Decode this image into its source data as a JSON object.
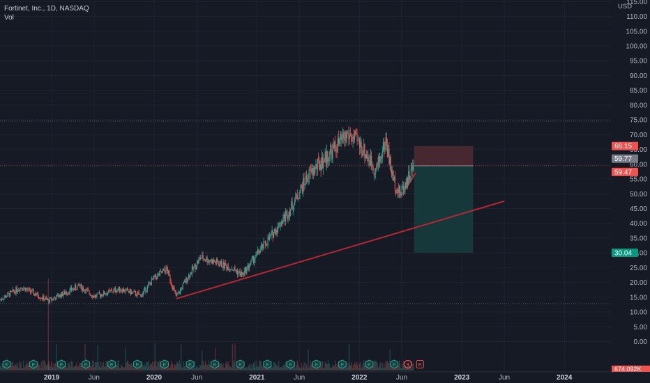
{
  "legend": {
    "symbol_line": "Fortinet, Inc., 1D, NASDAQ",
    "indicator": "Vol"
  },
  "colors": {
    "background": "#161a25",
    "up_candle": "#26a69a",
    "down_candle": "#ef5350",
    "trendline": "#b22833",
    "stop_zone": "#4a2830",
    "target_zone": "#163a3c",
    "last_price_badge": "#787b86",
    "entry_badge": "#ef5350",
    "target_badge": "#089981",
    "grid": "#1f2330"
  },
  "chart_data": {
    "type": "candlestick",
    "currency_label": "USD",
    "y_ticks": [
      "0.00",
      "5.00",
      "10.00",
      "15.00",
      "20.00",
      "25.00",
      "30.00",
      "35.00",
      "40.00",
      "45.00",
      "50.00",
      "55.00",
      "60.00",
      "65.00",
      "70.00",
      "75.00",
      "80.00",
      "85.00",
      "90.00",
      "95.00",
      "100.00",
      "105.00",
      "110.00",
      "115.00"
    ],
    "ylim": [
      -5,
      118
    ],
    "x_ticks": [
      "2019",
      "Jun",
      "2020",
      "Jun",
      "2021",
      "Jun",
      "2022",
      "Jun",
      "2023",
      "Jun",
      "2024"
    ],
    "x_tick_dates": [
      "2019-01-01",
      "2019-06-01",
      "2020-01-01",
      "2020-06-01",
      "2021-01-01",
      "2021-06-01",
      "2022-01-01",
      "2022-06-01",
      "2023-01-01",
      "2023-06-01",
      "2024-01-01"
    ],
    "xlim": [
      "2018-07-01",
      "2024-06-15"
    ],
    "price_path": [
      {
        "date": "2018-07-01",
        "price": 14.2
      },
      {
        "date": "2018-09-15",
        "price": 18.5
      },
      {
        "date": "2018-12-20",
        "price": 13.8
      },
      {
        "date": "2019-04-10",
        "price": 18.8
      },
      {
        "date": "2019-06-01",
        "price": 15.3
      },
      {
        "date": "2019-09-01",
        "price": 17.8
      },
      {
        "date": "2019-11-15",
        "price": 15.6
      },
      {
        "date": "2020-01-01",
        "price": 21.5
      },
      {
        "date": "2020-02-15",
        "price": 24.5
      },
      {
        "date": "2020-03-20",
        "price": 15.0
      },
      {
        "date": "2020-05-01",
        "price": 22.0
      },
      {
        "date": "2020-06-15",
        "price": 28.5
      },
      {
        "date": "2020-08-01",
        "price": 27.0
      },
      {
        "date": "2020-10-01",
        "price": 25.0
      },
      {
        "date": "2020-11-10",
        "price": 22.5
      },
      {
        "date": "2021-01-01",
        "price": 29.5
      },
      {
        "date": "2021-02-15",
        "price": 35.0
      },
      {
        "date": "2021-05-01",
        "price": 45.0
      },
      {
        "date": "2021-07-01",
        "price": 56.0
      },
      {
        "date": "2021-09-01",
        "price": 62.0
      },
      {
        "date": "2021-11-20",
        "price": 70.0
      },
      {
        "date": "2022-01-01",
        "price": 67.0
      },
      {
        "date": "2022-03-01",
        "price": 58.0
      },
      {
        "date": "2022-04-05",
        "price": 68.0
      },
      {
        "date": "2022-05-01",
        "price": 55.0
      },
      {
        "date": "2022-05-25",
        "price": 50.0
      },
      {
        "date": "2022-07-15",
        "price": 59.5
      }
    ],
    "price_range": {
      "high": 74.6,
      "low": 12.8
    },
    "horizontal_levels": [
      {
        "name": "all-time-high",
        "price": 74.6
      },
      {
        "name": "multi-year-low",
        "price": 12.8
      }
    ],
    "trendlines": [
      {
        "from": {
          "date": "2020-03-20",
          "price": 14.5
        },
        "to": {
          "date": "2023-06-01",
          "price": 47.5
        }
      },
      {
        "from": {
          "date": "2022-05-25",
          "price": 48.5
        },
        "to": {
          "date": "2022-07-20",
          "price": 57.0
        }
      }
    ],
    "position_tool": {
      "start_date": "2022-07-15",
      "end_date": "2023-02-10",
      "stop_price": 66.15,
      "entry_price": 59.47,
      "target_price": 30.04
    },
    "price_labels": [
      {
        "label": "66.15",
        "role": "stop"
      },
      {
        "label": "59.77",
        "role": "last"
      },
      {
        "label": "59.47",
        "role": "entry"
      },
      {
        "label": "30.04",
        "role": "target"
      }
    ],
    "volume_label": "674.092K",
    "event_markers": [
      {
        "date": "2018-07-25",
        "letter": "E",
        "kind": "earnings"
      },
      {
        "date": "2018-10-28",
        "letter": "E",
        "kind": "earnings"
      },
      {
        "date": "2019-02-05",
        "letter": "E",
        "kind": "earnings"
      },
      {
        "date": "2019-05-03",
        "letter": "E",
        "kind": "earnings"
      },
      {
        "date": "2019-08-03",
        "letter": "E",
        "kind": "earnings"
      },
      {
        "date": "2019-11-02",
        "letter": "E",
        "kind": "earnings"
      },
      {
        "date": "2020-02-07",
        "letter": "E",
        "kind": "earnings"
      },
      {
        "date": "2020-05-08",
        "letter": "E",
        "kind": "earnings"
      },
      {
        "date": "2020-08-04",
        "letter": "E",
        "kind": "earnings"
      },
      {
        "date": "2020-11-03",
        "letter": "E",
        "kind": "earnings"
      },
      {
        "date": "2021-02-07",
        "letter": "E",
        "kind": "earnings"
      },
      {
        "date": "2021-05-01",
        "letter": "E",
        "kind": "earnings"
      },
      {
        "date": "2021-08-01",
        "letter": "E",
        "kind": "earnings"
      },
      {
        "date": "2021-11-01",
        "letter": "E",
        "kind": "earnings"
      },
      {
        "date": "2022-02-05",
        "letter": "E",
        "kind": "earnings"
      },
      {
        "date": "2022-05-05",
        "letter": "E",
        "kind": "earnings"
      },
      {
        "date": "2022-06-23",
        "letter": "S",
        "kind": "split"
      },
      {
        "date": "2022-08-05",
        "letter": "E",
        "kind": "earnings-upcoming"
      }
    ]
  }
}
